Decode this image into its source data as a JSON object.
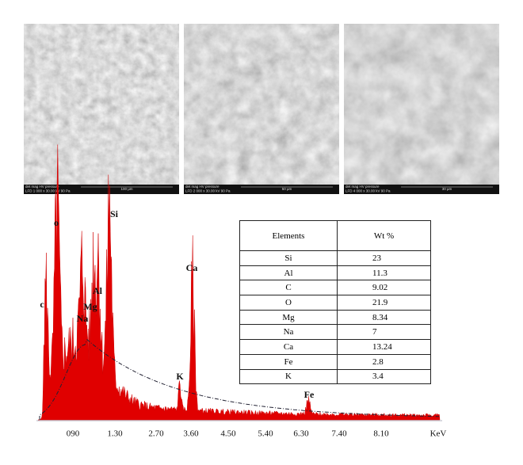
{
  "sem_images": [
    {
      "info_header": "det  mag  HV  pressure",
      "info": "LFD 1 000 x 30.00 kV 90 Pa",
      "scale": "100 µm"
    },
    {
      "info_header": "det  mag  HV  pressure",
      "info": "LFD 2 000 x 30.00 kV 90 Pa",
      "scale": "50 µm"
    },
    {
      "info_header": "det  mag  HV  pressure",
      "info": "LFD 4 000 x 30.00 kV 90 Pa",
      "scale": "30 µm"
    }
  ],
  "spectrum": {
    "x_labels": [
      "090",
      "1.30",
      "2.70",
      "3.60",
      "4.50",
      "5.40",
      "6.30",
      "7.40",
      "8.10"
    ],
    "x_unit": "KeV",
    "peak_labels": [
      "c",
      "o",
      "Na",
      "Mg",
      "Al",
      "Si",
      "Ca",
      "K",
      "Fe"
    ]
  },
  "table": {
    "header": [
      "Elements",
      "Wt %"
    ],
    "rows": [
      [
        "Si",
        "23"
      ],
      [
        "Al",
        "11.3"
      ],
      [
        "C",
        "9.02"
      ],
      [
        "O",
        "21.9"
      ],
      [
        "Mg",
        "8.34"
      ],
      [
        "Na",
        "7"
      ],
      [
        "Ca",
        "13.24"
      ],
      [
        "Fe",
        "2.8"
      ],
      [
        "K",
        "3.4"
      ]
    ]
  }
}
